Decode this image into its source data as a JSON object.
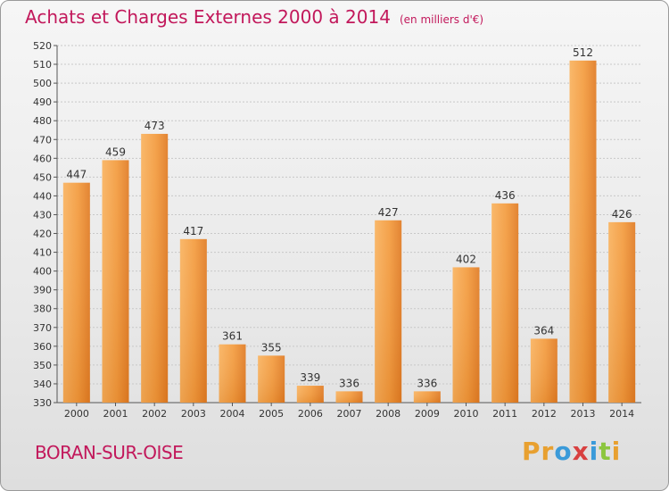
{
  "title": "Achats et Charges Externes 2000 à 2014",
  "subtitle": "(en milliers d'€)",
  "commune": "BORAN-SUR-OISE",
  "logo": [
    "P",
    "r",
    "o",
    "x",
    "i",
    "t",
    "i"
  ],
  "logo_colors": [
    "#e8a030",
    "#e8a030",
    "#3a9ad9",
    "#d84040",
    "#3a9ad9",
    "#8cc63f",
    "#e8a030"
  ],
  "colors": {
    "bar_light": "#f7a54a",
    "bar_dark": "#e0761e",
    "accent": "#c2185b",
    "grid": "#c8c8c8"
  },
  "chart_data": {
    "type": "bar",
    "title": "Achats et Charges Externes 2000 à 2014",
    "subtitle": "(en milliers d'€)",
    "categories": [
      "2000",
      "2001",
      "2002",
      "2003",
      "2004",
      "2005",
      "2006",
      "2007",
      "2008",
      "2009",
      "2010",
      "2011",
      "2012",
      "2013",
      "2014"
    ],
    "values": [
      447,
      459,
      473,
      417,
      361,
      355,
      339,
      336,
      427,
      336,
      402,
      436,
      364,
      512,
      426
    ],
    "ylim": [
      330,
      520
    ],
    "ytick_step": 10,
    "grid": true,
    "xlabel": "",
    "ylabel": ""
  }
}
